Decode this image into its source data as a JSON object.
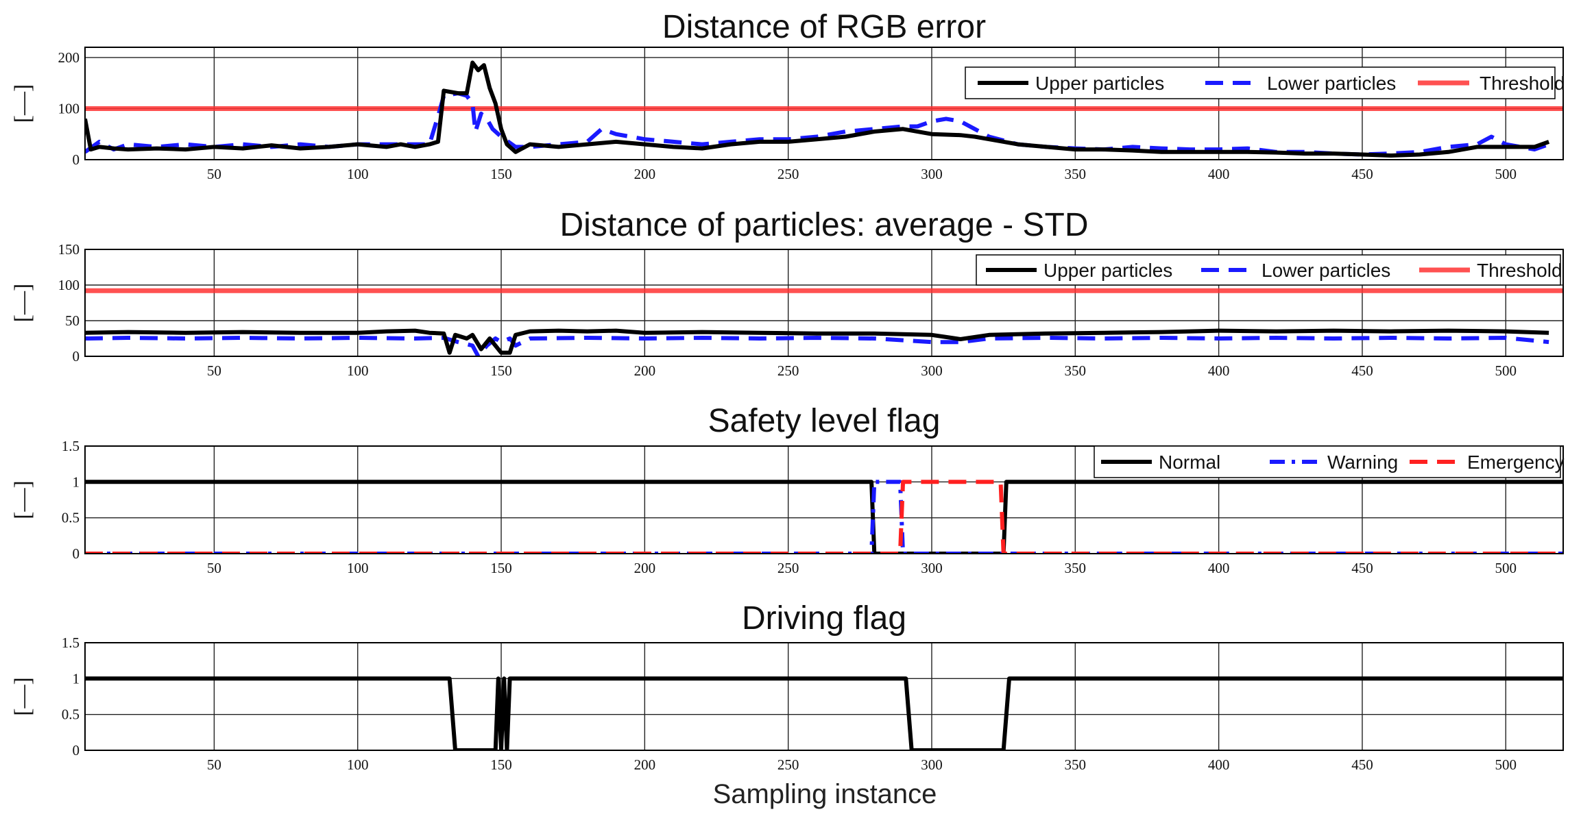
{
  "figure": {
    "xlabel": "Sampling instance",
    "colors": {
      "upper": "#000000",
      "lower": "#1a1aff",
      "threshold": "#ff3333",
      "normal": "#000000",
      "warning": "#1a1aff",
      "emergency": "#ff2020"
    }
  },
  "chart_data": [
    {
      "type": "line",
      "title": "Distance of RGB error",
      "ylabel": "[—]",
      "xlim": [
        5,
        520
      ],
      "ylim": [
        0,
        220
      ],
      "yticks": [
        0,
        100,
        200
      ],
      "xticks": [
        50,
        100,
        150,
        200,
        250,
        300,
        350,
        400,
        450,
        500
      ],
      "grid": true,
      "legend": "top-right",
      "series": [
        {
          "name": "Upper particles",
          "style": "solid",
          "color": "#000000",
          "points": [
            [
              5,
              80
            ],
            [
              7,
              20
            ],
            [
              10,
              25
            ],
            [
              15,
              22
            ],
            [
              20,
              20
            ],
            [
              30,
              22
            ],
            [
              40,
              20
            ],
            [
              50,
              25
            ],
            [
              60,
              22
            ],
            [
              70,
              28
            ],
            [
              80,
              22
            ],
            [
              90,
              25
            ],
            [
              100,
              30
            ],
            [
              110,
              25
            ],
            [
              115,
              30
            ],
            [
              120,
              25
            ],
            [
              125,
              30
            ],
            [
              128,
              35
            ],
            [
              130,
              135
            ],
            [
              135,
              130
            ],
            [
              138,
              130
            ],
            [
              140,
              190
            ],
            [
              142,
              175
            ],
            [
              144,
              185
            ],
            [
              146,
              140
            ],
            [
              148,
              110
            ],
            [
              150,
              60
            ],
            [
              152,
              30
            ],
            [
              155,
              15
            ],
            [
              160,
              30
            ],
            [
              170,
              25
            ],
            [
              180,
              30
            ],
            [
              190,
              35
            ],
            [
              200,
              30
            ],
            [
              210,
              25
            ],
            [
              220,
              22
            ],
            [
              230,
              30
            ],
            [
              240,
              35
            ],
            [
              250,
              35
            ],
            [
              260,
              40
            ],
            [
              270,
              45
            ],
            [
              280,
              55
            ],
            [
              290,
              60
            ],
            [
              300,
              50
            ],
            [
              310,
              48
            ],
            [
              315,
              45
            ],
            [
              320,
              40
            ],
            [
              330,
              30
            ],
            [
              340,
              25
            ],
            [
              350,
              20
            ],
            [
              360,
              20
            ],
            [
              370,
              18
            ],
            [
              380,
              15
            ],
            [
              390,
              15
            ],
            [
              400,
              15
            ],
            [
              410,
              15
            ],
            [
              420,
              14
            ],
            [
              430,
              12
            ],
            [
              440,
              12
            ],
            [
              450,
              10
            ],
            [
              460,
              8
            ],
            [
              470,
              10
            ],
            [
              480,
              15
            ],
            [
              490,
              25
            ],
            [
              500,
              25
            ],
            [
              510,
              25
            ],
            [
              515,
              35
            ]
          ]
        },
        {
          "name": "Lower particles",
          "style": "dashed",
          "color": "#1a1aff",
          "points": [
            [
              5,
              15
            ],
            [
              10,
              35
            ],
            [
              15,
              20
            ],
            [
              20,
              30
            ],
            [
              30,
              25
            ],
            [
              40,
              30
            ],
            [
              50,
              25
            ],
            [
              60,
              30
            ],
            [
              70,
              25
            ],
            [
              80,
              30
            ],
            [
              90,
              25
            ],
            [
              100,
              30
            ],
            [
              110,
              30
            ],
            [
              120,
              30
            ],
            [
              125,
              30
            ],
            [
              128,
              85
            ],
            [
              130,
              125
            ],
            [
              135,
              130
            ],
            [
              138,
              125
            ],
            [
              140,
              110
            ],
            [
              141,
              55
            ],
            [
              143,
              90
            ],
            [
              145,
              80
            ],
            [
              147,
              60
            ],
            [
              150,
              45
            ],
            [
              155,
              25
            ],
            [
              160,
              25
            ],
            [
              170,
              30
            ],
            [
              180,
              35
            ],
            [
              185,
              60
            ],
            [
              190,
              50
            ],
            [
              200,
              40
            ],
            [
              210,
              35
            ],
            [
              220,
              30
            ],
            [
              230,
              35
            ],
            [
              240,
              40
            ],
            [
              250,
              40
            ],
            [
              260,
              45
            ],
            [
              270,
              55
            ],
            [
              280,
              60
            ],
            [
              290,
              65
            ],
            [
              295,
              65
            ],
            [
              300,
              75
            ],
            [
              305,
              80
            ],
            [
              310,
              75
            ],
            [
              315,
              60
            ],
            [
              320,
              45
            ],
            [
              330,
              30
            ],
            [
              340,
              25
            ],
            [
              350,
              22
            ],
            [
              360,
              20
            ],
            [
              370,
              25
            ],
            [
              380,
              22
            ],
            [
              390,
              20
            ],
            [
              400,
              20
            ],
            [
              410,
              22
            ],
            [
              420,
              15
            ],
            [
              430,
              15
            ],
            [
              440,
              12
            ],
            [
              450,
              10
            ],
            [
              460,
              12
            ],
            [
              470,
              15
            ],
            [
              480,
              25
            ],
            [
              490,
              30
            ],
            [
              495,
              45
            ],
            [
              500,
              30
            ],
            [
              510,
              20
            ],
            [
              515,
              30
            ]
          ]
        },
        {
          "name": "Threshold",
          "style": "threshold",
          "color": "#ff3333",
          "points": [
            [
              5,
              100
            ],
            [
              520,
              100
            ]
          ]
        }
      ]
    },
    {
      "type": "line",
      "title": "Distance of particles: average - STD",
      "ylabel": "[—]",
      "xlim": [
        5,
        520
      ],
      "ylim": [
        0,
        150
      ],
      "yticks": [
        0,
        50,
        100,
        150
      ],
      "xticks": [
        50,
        100,
        150,
        200,
        250,
        300,
        350,
        400,
        450,
        500
      ],
      "grid": true,
      "legend": "top-right",
      "series": [
        {
          "name": "Upper particles",
          "style": "solid",
          "color": "#000000",
          "points": [
            [
              5,
              33
            ],
            [
              20,
              34
            ],
            [
              40,
              33
            ],
            [
              60,
              34
            ],
            [
              80,
              33
            ],
            [
              100,
              33
            ],
            [
              110,
              35
            ],
            [
              120,
              36
            ],
            [
              125,
              33
            ],
            [
              130,
              32
            ],
            [
              132,
              5
            ],
            [
              134,
              30
            ],
            [
              138,
              25
            ],
            [
              140,
              30
            ],
            [
              143,
              10
            ],
            [
              146,
              25
            ],
            [
              150,
              5
            ],
            [
              153,
              5
            ],
            [
              155,
              30
            ],
            [
              160,
              35
            ],
            [
              170,
              36
            ],
            [
              180,
              35
            ],
            [
              190,
              36
            ],
            [
              200,
              33
            ],
            [
              220,
              34
            ],
            [
              240,
              33
            ],
            [
              260,
              32
            ],
            [
              280,
              32
            ],
            [
              300,
              30
            ],
            [
              305,
              27
            ],
            [
              310,
              24
            ],
            [
              320,
              30
            ],
            [
              340,
              32
            ],
            [
              360,
              33
            ],
            [
              380,
              34
            ],
            [
              400,
              36
            ],
            [
              420,
              35
            ],
            [
              440,
              36
            ],
            [
              460,
              35
            ],
            [
              480,
              36
            ],
            [
              500,
              35
            ],
            [
              515,
              33
            ]
          ]
        },
        {
          "name": "Lower particles",
          "style": "dashed",
          "color": "#1a1aff",
          "points": [
            [
              5,
              25
            ],
            [
              20,
              26
            ],
            [
              40,
              25
            ],
            [
              60,
              26
            ],
            [
              80,
              25
            ],
            [
              100,
              26
            ],
            [
              120,
              25
            ],
            [
              130,
              26
            ],
            [
              135,
              20
            ],
            [
              140,
              15
            ],
            [
              142,
              0
            ],
            [
              145,
              15
            ],
            [
              148,
              25
            ],
            [
              150,
              20
            ],
            [
              153,
              25
            ],
            [
              155,
              15
            ],
            [
              160,
              25
            ],
            [
              180,
              26
            ],
            [
              200,
              25
            ],
            [
              220,
              26
            ],
            [
              240,
              25
            ],
            [
              260,
              26
            ],
            [
              280,
              25
            ],
            [
              300,
              20
            ],
            [
              310,
              20
            ],
            [
              320,
              25
            ],
            [
              340,
              26
            ],
            [
              360,
              25
            ],
            [
              380,
              26
            ],
            [
              400,
              25
            ],
            [
              420,
              26
            ],
            [
              440,
              25
            ],
            [
              460,
              26
            ],
            [
              480,
              25
            ],
            [
              500,
              26
            ],
            [
              510,
              22
            ],
            [
              515,
              20
            ]
          ]
        },
        {
          "name": "Threshold",
          "style": "threshold",
          "color": "#ff3333",
          "points": [
            [
              5,
              92
            ],
            [
              520,
              92
            ]
          ]
        }
      ]
    },
    {
      "type": "line",
      "title": "Safety level flag",
      "ylabel": "[—]",
      "xlim": [
        5,
        520
      ],
      "ylim": [
        0,
        1.5
      ],
      "yticks": [
        0,
        0.5,
        1,
        1.5
      ],
      "xticks": [
        50,
        100,
        150,
        200,
        250,
        300,
        350,
        400,
        450,
        500
      ],
      "grid": true,
      "legend": "top-right",
      "series": [
        {
          "name": "Normal",
          "style": "solid",
          "color": "#000000",
          "points": [
            [
              5,
              1
            ],
            [
              279,
              1
            ],
            [
              280,
              0
            ],
            [
              325,
              0
            ],
            [
              326,
              1
            ],
            [
              520,
              1
            ]
          ]
        },
        {
          "name": "Warning",
          "style": "dashdot",
          "color": "#1a1aff",
          "points": [
            [
              5,
              0
            ],
            [
              279,
              0
            ],
            [
              280,
              1
            ],
            [
              289,
              1
            ],
            [
              290,
              0
            ],
            [
              520,
              0
            ]
          ]
        },
        {
          "name": "Emergency",
          "style": "dashed",
          "color": "#ff2020",
          "points": [
            [
              5,
              0
            ],
            [
              289,
              0
            ],
            [
              290,
              1
            ],
            [
              324,
              1
            ],
            [
              325,
              0
            ],
            [
              520,
              0
            ]
          ]
        }
      ]
    },
    {
      "type": "line",
      "title": "Driving flag",
      "ylabel": "[—]",
      "xlim": [
        5,
        520
      ],
      "ylim": [
        0,
        1.5
      ],
      "yticks": [
        0,
        0.5,
        1,
        1.5
      ],
      "xticks": [
        50,
        100,
        150,
        200,
        250,
        300,
        350,
        400,
        450,
        500
      ],
      "grid": true,
      "legend": "none",
      "series": [
        {
          "name": "",
          "style": "solid",
          "color": "#000000",
          "points": [
            [
              5,
              1
            ],
            [
              132,
              1
            ],
            [
              134,
              0
            ],
            [
              148,
              0
            ],
            [
              149,
              1
            ],
            [
              150,
              0
            ],
            [
              151,
              1
            ],
            [
              152,
              0
            ],
            [
              153,
              1
            ],
            [
              291,
              1
            ],
            [
              293,
              0
            ],
            [
              325,
              0
            ],
            [
              327,
              1
            ],
            [
              520,
              1
            ]
          ]
        }
      ]
    }
  ]
}
